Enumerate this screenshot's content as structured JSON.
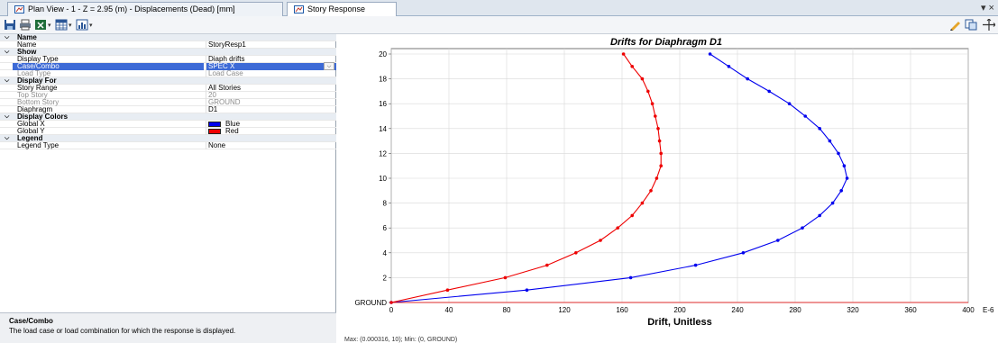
{
  "tabs": [
    {
      "label": "Plan View - 1 - Z = 2.95 (m)  - Displacements (Dead)  [mm]",
      "active": false
    },
    {
      "label": "Story Response",
      "active": true
    }
  ],
  "window_controls": {
    "close": "▾ ×"
  },
  "toolbar": {
    "icons": [
      "save-icon",
      "print-icon",
      "export-icon",
      "table-icon",
      "chart-icon",
      "pen-icon",
      "copy-icon",
      "move-icon"
    ]
  },
  "properties": [
    {
      "type": "category",
      "label": "Name"
    },
    {
      "type": "row",
      "key": "Name",
      "value": "StoryResp1"
    },
    {
      "type": "category",
      "label": "Show"
    },
    {
      "type": "row",
      "key": "Display Type",
      "value": "Diaph drifts"
    },
    {
      "type": "row",
      "key": "Case/Combo",
      "value": "SPEC X",
      "selected": true
    },
    {
      "type": "row",
      "key": "Load Type",
      "value": "Load Case",
      "disabled": true
    },
    {
      "type": "category",
      "label": "Display For"
    },
    {
      "type": "row",
      "key": "Story Range",
      "value": "All Stories"
    },
    {
      "type": "row",
      "key": "Top Story",
      "value": "20",
      "disabled": true
    },
    {
      "type": "row",
      "key": "Bottom Story",
      "value": "GROUND",
      "disabled": true
    },
    {
      "type": "row",
      "key": "Diaphragm",
      "value": "D1"
    },
    {
      "type": "category",
      "label": "Display Colors"
    },
    {
      "type": "row",
      "key": "Global X",
      "value": "Blue",
      "swatch": "#0000ee"
    },
    {
      "type": "row",
      "key": "Global Y",
      "value": "Red",
      "swatch": "#ee0000"
    },
    {
      "type": "category",
      "label": "Legend"
    },
    {
      "type": "row",
      "key": "Legend Type",
      "value": "None"
    }
  ],
  "description": {
    "title": "Case/Combo",
    "text": "The load case or load combination for which the response is displayed."
  },
  "status": "Max: (0.000316, 10);  Min: (0, GROUND)",
  "chart_data": {
    "type": "line",
    "title": "Drifts for Diaphragm D1",
    "xlabel": "Drift, Unitless",
    "x_unit": "E-6",
    "xlim": [
      0,
      400
    ],
    "xticks": [
      0,
      40,
      80,
      120,
      160,
      200,
      240,
      280,
      320,
      360,
      400
    ],
    "ylim": [
      0,
      20
    ],
    "yticks": [
      0,
      2,
      4,
      6,
      8,
      10,
      12,
      14,
      16,
      18,
      20
    ],
    "ytick_labels": [
      "GROUND",
      "2",
      "4",
      "6",
      "8",
      "10",
      "12",
      "14",
      "16",
      "18",
      "20"
    ],
    "grid": true,
    "legend": "none",
    "series": [
      {
        "color": "#0000ee",
        "points": [
          [
            0,
            0
          ],
          [
            94,
            1
          ],
          [
            166,
            2
          ],
          [
            211,
            3
          ],
          [
            244,
            4
          ],
          [
            268,
            5
          ],
          [
            285,
            6
          ],
          [
            297,
            7
          ],
          [
            306,
            8
          ],
          [
            312,
            9
          ],
          [
            316,
            10
          ],
          [
            314,
            11
          ],
          [
            310,
            12
          ],
          [
            304,
            13
          ],
          [
            297,
            14
          ],
          [
            287,
            15
          ],
          [
            276,
            16
          ],
          [
            262,
            17
          ],
          [
            247,
            18
          ],
          [
            234,
            19
          ],
          [
            221,
            20
          ]
        ]
      },
      {
        "color": "#ee0000",
        "points": [
          [
            0,
            0
          ],
          [
            39,
            1
          ],
          [
            79,
            2
          ],
          [
            108,
            3
          ],
          [
            128,
            4
          ],
          [
            145,
            5
          ],
          [
            157,
            6
          ],
          [
            167,
            7
          ],
          [
            174,
            8
          ],
          [
            180,
            9
          ],
          [
            184,
            10
          ],
          [
            187,
            11
          ],
          [
            187,
            12
          ],
          [
            186,
            13
          ],
          [
            185,
            14
          ],
          [
            183,
            15
          ],
          [
            181,
            16
          ],
          [
            178,
            17
          ],
          [
            174,
            18
          ],
          [
            167,
            19
          ],
          [
            161,
            20
          ]
        ]
      }
    ]
  }
}
